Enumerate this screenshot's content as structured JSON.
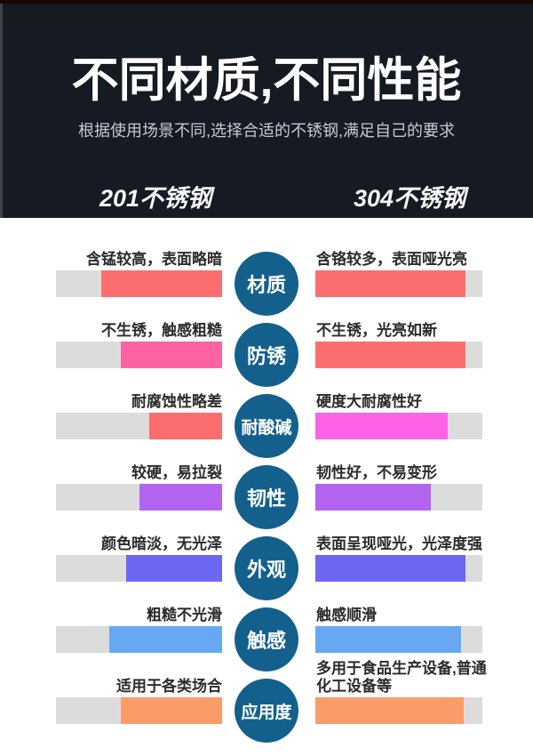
{
  "page": {
    "background": "#ffffff"
  },
  "header": {
    "background": "#151a23",
    "top_strip_color": "#1e0303",
    "title": "不同材质,不同性能",
    "subtitle": "根据使用场景不同,选择合适的不锈钢,满足自己的要求",
    "left_column_label": "201不锈钢",
    "right_column_label": "304不锈钢",
    "title_color": "#ffffff",
    "subtitle_color": "#c9c9cd"
  },
  "comparison": {
    "circle_color": "#14608c",
    "track_color": "#dcdcdc",
    "rows": [
      {
        "label": "材质",
        "left_text": "含锰较高，表面略暗",
        "right_text": "含铬较多，表面哑光亮",
        "left_color": "#fc6e6d",
        "right_color": "#fc6e6d",
        "left_pct": 73,
        "right_pct": 90
      },
      {
        "label": "防锈",
        "left_text": "不生锈，触感粗糙",
        "right_text": "不生锈，光亮如新",
        "left_color": "#ff61a2",
        "right_color": "#fc6e6d",
        "left_pct": 61,
        "right_pct": 90
      },
      {
        "label": "耐酸碱",
        "left_text": "耐腐蚀性略差",
        "right_text": "硬度大耐腐性好",
        "left_color": "#fc6e6d",
        "right_color": "#fe62e9",
        "left_pct": 44,
        "right_pct": 79
      },
      {
        "label": "韧性",
        "left_text": "较硬，易拉裂",
        "right_text": "韧性好，不易变形",
        "left_color": "#b264f1",
        "right_color": "#b264f1",
        "left_pct": 50,
        "right_pct": 69
      },
      {
        "label": "外观",
        "left_text": "颜色暗淡，无光泽",
        "right_text": "表面呈现哑光，光泽度强",
        "left_color": "#6d68f3",
        "right_color": "#6d68f3",
        "left_pct": 58,
        "right_pct": 90
      },
      {
        "label": "触感",
        "left_text": "粗糙不光滑",
        "right_text": "触感顺滑",
        "left_color": "#68a8f3",
        "right_color": "#68a8f3",
        "left_pct": 68,
        "right_pct": 87
      },
      {
        "label": "应用度",
        "left_text": "适用于各类场合",
        "right_text": "多用于食品生产设备,普通化工设备等",
        "left_color": "#f99c68",
        "right_color": "#f99c68",
        "left_pct": 61,
        "right_pct": 89
      }
    ]
  }
}
